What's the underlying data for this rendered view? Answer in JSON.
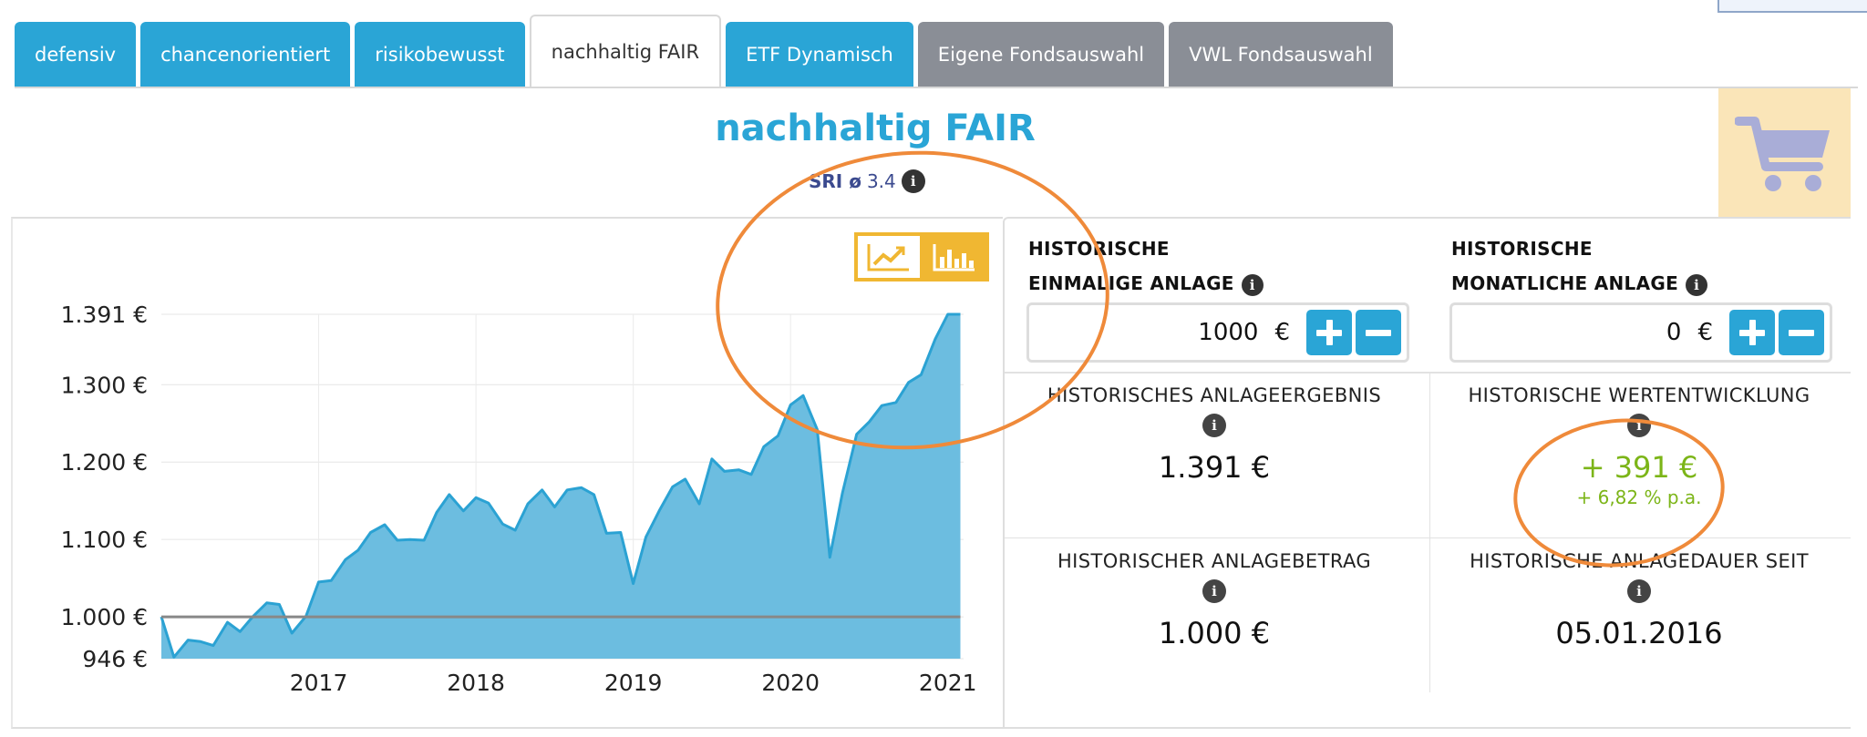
{
  "tabs": [
    {
      "label": "defensiv",
      "style": "blue"
    },
    {
      "label": "chancenorientiert",
      "style": "blue"
    },
    {
      "label": "risikobewusst",
      "style": "blue"
    },
    {
      "label": "nachhaltig FAIR",
      "style": "active"
    },
    {
      "label": "ETF Dynamisch",
      "style": "blue"
    },
    {
      "label": "Eigene Fondsauswahl",
      "style": "gray"
    },
    {
      "label": "VWL Fondsauswahl",
      "style": "gray"
    }
  ],
  "title": "nachhaltig FAIR",
  "sri": {
    "label": "SRI ø",
    "value": "3.4"
  },
  "colors": {
    "accent": "#2aa5d6",
    "gray_tab": "#8a8e96",
    "toggle": "#f0b732",
    "positive": "#7cb518",
    "annotation": "#ef8a3a",
    "cart_bg": "#fae5b8"
  },
  "icons": {
    "cart": "shopping-cart-icon",
    "info": "info-icon",
    "line_chart": "line-chart-icon",
    "bar_chart": "bar-chart-icon"
  },
  "investment": {
    "single": {
      "line1": "HISTORISCHE",
      "line2": "EINMALIGE ANLAGE",
      "value": "1000",
      "currency": "€"
    },
    "monthly": {
      "line1": "HISTORISCHE",
      "line2": "MONATLICHE ANLAGE",
      "value": "0",
      "currency": "€"
    }
  },
  "stats": {
    "result": {
      "label": "HISTORISCHES ANLAGEERGEBNIS",
      "value": "1.391 €"
    },
    "performance": {
      "label": "HISTORISCHE WERTENTWICKLUNG",
      "value": "+ 391 €",
      "sub": "+ 6,82 % p.a."
    },
    "amount": {
      "label": "HISTORISCHER ANLAGEBETRAG",
      "value": "1.000 €"
    },
    "since": {
      "label": "HISTORISCHE ANLAGEDAUER SEIT",
      "value": "05.01.2016"
    }
  },
  "chart_data": {
    "type": "area",
    "title": "",
    "xlabel": "",
    "ylabel": "",
    "xlim": [
      2016.0,
      2021.1
    ],
    "ylim": [
      946,
      1391
    ],
    "y_tick_labels": [
      "1.391 €",
      "1.300 €",
      "1.200 €",
      "1.100 €",
      "1.000 €",
      "946 €"
    ],
    "y_tick_values": [
      1391,
      1300,
      1200,
      1100,
      1000,
      946
    ],
    "x_tick_labels": [
      "2017",
      "2018",
      "2019",
      "2020",
      "2021"
    ],
    "x_tick_values": [
      2017,
      2018,
      2019,
      2020,
      2021
    ],
    "baseline": 1000,
    "grid": true,
    "legend": "none",
    "x": [
      2016.0,
      2016.08,
      2016.17,
      2016.25,
      2016.33,
      2016.42,
      2016.5,
      2016.58,
      2016.67,
      2016.75,
      2016.83,
      2016.92,
      2017.0,
      2017.08,
      2017.17,
      2017.25,
      2017.33,
      2017.42,
      2017.5,
      2017.58,
      2017.67,
      2017.75,
      2017.83,
      2017.92,
      2018.0,
      2018.08,
      2018.17,
      2018.25,
      2018.33,
      2018.42,
      2018.5,
      2018.58,
      2018.67,
      2018.75,
      2018.83,
      2018.92,
      2019.0,
      2019.08,
      2019.17,
      2019.25,
      2019.33,
      2019.42,
      2019.5,
      2019.58,
      2019.67,
      2019.75,
      2019.83,
      2019.92,
      2020.0,
      2020.08,
      2020.17,
      2020.25,
      2020.33,
      2020.42,
      2020.5,
      2020.58,
      2020.67,
      2020.75,
      2020.83,
      2020.92,
      2021.0,
      2021.08
    ],
    "values": [
      1000,
      948,
      970,
      968,
      963,
      993,
      981,
      1000,
      1018,
      1016,
      979,
      1001,
      1045,
      1047,
      1074,
      1086,
      1109,
      1119,
      1099,
      1100,
      1099,
      1135,
      1158,
      1137,
      1154,
      1147,
      1120,
      1112,
      1146,
      1164,
      1142,
      1164,
      1167,
      1158,
      1108,
      1109,
      1043,
      1103,
      1139,
      1168,
      1178,
      1146,
      1204,
      1188,
      1190,
      1184,
      1220,
      1234,
      1274,
      1286,
      1242,
      1077,
      1160,
      1236,
      1252,
      1273,
      1277,
      1303,
      1313,
      1359,
      1391,
      1391
    ]
  }
}
